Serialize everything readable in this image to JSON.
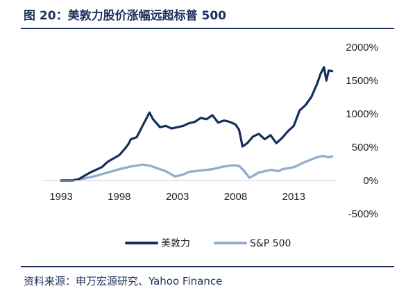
{
  "figure": {
    "title": "图 20：美敦力股价涨幅远超标普 500",
    "source": "资料来源：申万宏源研究、Yahoo Finance"
  },
  "chart_data": {
    "type": "line",
    "title": "",
    "xlabel": "",
    "ylabel": "",
    "x_ticks": [
      "1993",
      "1998",
      "2003",
      "2008",
      "2013"
    ],
    "y_ticks": [
      "2000%",
      "1500%",
      "1000%",
      "500%",
      "0%",
      "-500%"
    ],
    "xlim": [
      1993,
      2016.5
    ],
    "ylim": [
      -500,
      2000
    ],
    "grid": false,
    "legend_position": "bottom",
    "series": [
      {
        "name": "美敦力",
        "color": "#142e5c",
        "x": [
          1993.0,
          1994.0,
          1994.5,
          1995.0,
          1995.5,
          1996.0,
          1996.5,
          1997.0,
          1997.5,
          1998.0,
          1998.5,
          1998.8,
          1999.0,
          1999.5,
          2000.0,
          2000.6,
          2000.9,
          2001.2,
          2001.5,
          2002.0,
          2002.5,
          2003.0,
          2003.5,
          2004.0,
          2004.5,
          2005.0,
          2005.5,
          2006.0,
          2006.5,
          2007.0,
          2007.5,
          2008.0,
          2008.3,
          2008.6,
          2009.0,
          2009.5,
          2010.0,
          2010.5,
          2011.0,
          2011.5,
          2012.0,
          2012.5,
          2013.0,
          2013.5,
          2014.0,
          2014.5,
          2015.0,
          2015.3,
          2015.6,
          2015.8,
          2016.0,
          2016.3
        ],
        "values": [
          0,
          0,
          20,
          70,
          120,
          160,
          200,
          280,
          330,
          380,
          480,
          550,
          620,
          650,
          820,
          1020,
          920,
          860,
          800,
          820,
          780,
          800,
          820,
          860,
          880,
          940,
          920,
          980,
          870,
          900,
          880,
          840,
          760,
          510,
          560,
          660,
          700,
          620,
          680,
          560,
          640,
          740,
          820,
          1050,
          1130,
          1250,
          1450,
          1600,
          1700,
          1500,
          1650,
          1640
        ]
      },
      {
        "name": "S&P 500",
        "color": "#93afcc",
        "x": [
          1993.0,
          1994.0,
          1995.0,
          1996.0,
          1997.0,
          1998.0,
          1999.0,
          2000.0,
          2000.7,
          2001.5,
          2002.0,
          2002.8,
          2003.5,
          2004.0,
          2005.0,
          2006.0,
          2007.0,
          2007.8,
          2008.3,
          2008.7,
          2009.2,
          2010.0,
          2010.5,
          2011.0,
          2011.7,
          2012.0,
          2013.0,
          2014.0,
          2015.0,
          2015.5,
          2016.0,
          2016.3
        ],
        "values": [
          0,
          5,
          30,
          70,
          120,
          170,
          210,
          240,
          220,
          170,
          140,
          60,
          90,
          130,
          150,
          170,
          210,
          230,
          220,
          150,
          40,
          120,
          140,
          160,
          140,
          170,
          200,
          280,
          350,
          370,
          350,
          360
        ]
      }
    ]
  }
}
